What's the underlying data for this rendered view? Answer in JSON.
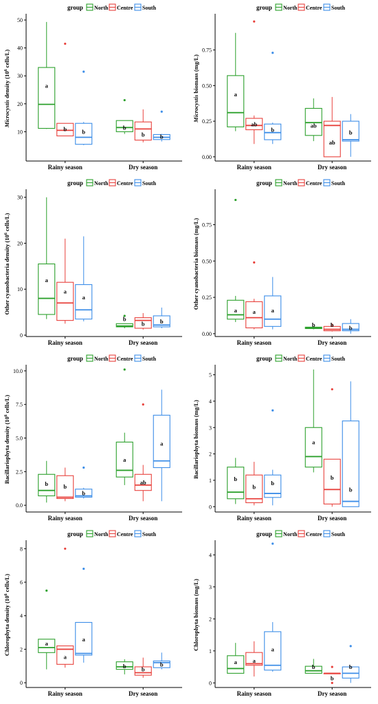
{
  "legend": {
    "title": "group",
    "groups": [
      {
        "name": "North",
        "color": "#2ca02c"
      },
      {
        "name": "Centre",
        "color": "#e8413c"
      },
      {
        "name": "South",
        "color": "#3d8ee8"
      }
    ]
  },
  "chart_data": [
    {
      "type": "boxplot",
      "ylabel_parts": [
        {
          "t": "Microcystis",
          "i": true
        },
        {
          "t": " density (10",
          "i": false
        },
        {
          "t": "6",
          "sup": true
        },
        {
          "t": " cells/L)",
          "i": false
        }
      ],
      "ylim": [
        0,
        51
      ],
      "ticks": [
        10,
        20,
        30,
        40,
        50
      ],
      "tick_labels": [
        "10",
        "20",
        "30",
        "40",
        "50"
      ],
      "categories": [
        "Rainy season",
        "Dry season"
      ],
      "boxes": [
        [
          {
            "min": 11,
            "q1": 11.2,
            "med": 19.8,
            "q3": 33,
            "max": 49.3,
            "out": [],
            "sig": "a",
            "sigy": 26.5
          },
          {
            "min": 8.5,
            "q1": 8.5,
            "med": 10.5,
            "q3": 13,
            "max": 13,
            "out": [
              41.5
            ],
            "sig": "b",
            "sigy": 11
          },
          {
            "min": 5.2,
            "q1": 5.5,
            "med": 8,
            "q3": 13,
            "max": 13.5,
            "out": [
              31.5
            ],
            "sig": "b",
            "sigy": 10
          }
        ],
        [
          {
            "min": 9.2,
            "q1": 10,
            "med": 11.5,
            "q3": 14,
            "max": 14,
            "out": [
              21.3
            ],
            "sig": "b",
            "sigy": 11.5
          },
          {
            "min": 6.2,
            "q1": 7,
            "med": 11,
            "q3": 13.5,
            "max": 18,
            "out": [],
            "sig": "b",
            "sigy": 9
          },
          {
            "min": 6.5,
            "q1": 7.2,
            "med": 8,
            "q3": 9,
            "max": 9.2,
            "out": [
              17.2
            ],
            "sig": "b",
            "sigy": 8.2
          }
        ]
      ]
    },
    {
      "type": "boxplot",
      "ylabel_parts": [
        {
          "t": "Microcystis",
          "i": true
        },
        {
          "t": " biomass (mg/L)",
          "i": false
        }
      ],
      "ylim": [
        -0.02,
        0.98
      ],
      "ticks": [
        0,
        0.25,
        0.5,
        0.75
      ],
      "tick_labels": [
        "0.00",
        "0.25",
        "0.50",
        "0.75"
      ],
      "categories": [
        "Rainy season",
        "Dry season"
      ],
      "boxes": [
        [
          {
            "min": 0.18,
            "q1": 0.21,
            "med": 0.31,
            "q3": 0.57,
            "max": 0.87,
            "out": [],
            "sig": "a",
            "sigy": 0.44
          },
          {
            "min": 0.09,
            "q1": 0.19,
            "med": 0.22,
            "q3": 0.27,
            "max": 0.29,
            "out": [
              0.95
            ],
            "sig": "ab",
            "sigy": 0.23
          },
          {
            "min": 0.09,
            "q1": 0.12,
            "med": 0.17,
            "q3": 0.23,
            "max": 0.24,
            "out": [
              0.73
            ],
            "sig": "b",
            "sigy": 0.19
          }
        ],
        [
          {
            "min": 0.11,
            "q1": 0.15,
            "med": 0.24,
            "q3": 0.34,
            "max": 0.41,
            "out": [],
            "sig": "ab",
            "sigy": 0.22
          },
          {
            "min": 0,
            "q1": 0,
            "med": 0.22,
            "q3": 0.25,
            "max": 0.42,
            "out": [],
            "sig": "ab",
            "sigy": 0.1
          },
          {
            "min": 0,
            "q1": 0.11,
            "med": 0.12,
            "q3": 0.25,
            "max": 0.3,
            "out": [],
            "sig": "b",
            "sigy": 0.17
          }
        ]
      ]
    },
    {
      "type": "boxplot",
      "ylabel_parts": [
        {
          "t": "Other cyanobacteria density (10",
          "i": false
        },
        {
          "t": "6",
          "sup": true
        },
        {
          "t": " cells/L)",
          "i": false
        }
      ],
      "ylim": [
        0,
        31
      ],
      "ticks": [
        0,
        10,
        20,
        30
      ],
      "tick_labels": [
        "0",
        "10",
        "20",
        "30"
      ],
      "categories": [
        "Rainy season",
        "Dry season"
      ],
      "boxes": [
        [
          {
            "min": 3.5,
            "q1": 4.5,
            "med": 8,
            "q3": 15.5,
            "max": 30,
            "out": [],
            "sig": "a",
            "sigy": 12
          },
          {
            "min": 2.5,
            "q1": 3.2,
            "med": 7,
            "q3": 11.5,
            "max": 21,
            "out": [],
            "sig": "a",
            "sigy": 9.5
          },
          {
            "min": 3,
            "q1": 3.5,
            "med": 5.5,
            "q3": 11,
            "max": 21.5,
            "out": [],
            "sig": "a",
            "sigy": 8.2
          }
        ],
        [
          {
            "min": 1.5,
            "q1": 1.8,
            "med": 2,
            "q3": 2.5,
            "max": 2.5,
            "out": [
              4.2
            ],
            "sig": "b",
            "sigy": 3.5
          },
          {
            "min": 1.2,
            "q1": 1.5,
            "med": 3.2,
            "q3": 3.8,
            "max": 4.8,
            "out": [],
            "sig": "b",
            "sigy": 2.5
          },
          {
            "min": 1.5,
            "q1": 1.8,
            "med": 2.2,
            "q3": 4.2,
            "max": 6,
            "out": [],
            "sig": "b",
            "sigy": 3
          }
        ]
      ]
    },
    {
      "type": "boxplot",
      "ylabel_parts": [
        {
          "t": "Other cyanobacteria biomass (mg/L)",
          "i": false
        }
      ],
      "ylim": [
        -0.01,
        0.97
      ],
      "ticks": [
        0,
        0.25,
        0.5,
        0.75
      ],
      "tick_labels": [
        "0.00",
        "0.25",
        "0.50",
        "0.75"
      ],
      "categories": [
        "Rainy season",
        "Dry season"
      ],
      "boxes": [
        [
          {
            "min": 0.08,
            "q1": 0.1,
            "med": 0.13,
            "q3": 0.23,
            "max": 0.26,
            "out": [
              0.92
            ],
            "sig": "a",
            "sigy": 0.16
          },
          {
            "min": 0.03,
            "q1": 0.04,
            "med": 0.11,
            "q3": 0.22,
            "max": 0.24,
            "out": [
              0.49
            ],
            "sig": "a",
            "sigy": 0.15
          },
          {
            "min": 0.03,
            "q1": 0.05,
            "med": 0.1,
            "q3": 0.26,
            "max": 0.39,
            "out": [],
            "sig": "a",
            "sigy": 0.16
          }
        ],
        [
          {
            "min": 0.03,
            "q1": 0.035,
            "med": 0.04,
            "q3": 0.045,
            "max": 0.05,
            "out": [],
            "sig": "b",
            "sigy": 0.06
          },
          {
            "min": 0.015,
            "q1": 0.02,
            "med": 0.03,
            "q3": 0.05,
            "max": 0.07,
            "out": [],
            "sig": "b",
            "sigy": 0.06
          },
          {
            "min": 0,
            "q1": 0.02,
            "med": 0.03,
            "q3": 0.07,
            "max": 0.1,
            "out": [],
            "sig": "b",
            "sigy": 0.04
          }
        ]
      ]
    },
    {
      "type": "boxplot",
      "ylabel_parts": [
        {
          "t": "Bacillariophyta density (10",
          "i": false
        },
        {
          "t": "6",
          "sup": true
        },
        {
          "t": " cells/L)",
          "i": false
        }
      ],
      "ylim": [
        -0.4,
        10.2
      ],
      "ticks": [
        0,
        2.5,
        5,
        7.5,
        10
      ],
      "tick_labels": [
        "0.0",
        "2.5",
        "5.0",
        "7.5",
        "10.0"
      ],
      "categories": [
        "Rainy season",
        "Dry season"
      ],
      "boxes": [
        [
          {
            "min": 0.2,
            "q1": 0.7,
            "med": 1.1,
            "q3": 2.3,
            "max": 3.3,
            "out": [],
            "sig": "b",
            "sigy": 1.6
          },
          {
            "min": 0.3,
            "q1": 0.5,
            "med": 0.6,
            "q3": 2.2,
            "max": 2.8,
            "out": [],
            "sig": "b",
            "sigy": 1.4
          },
          {
            "min": 0.5,
            "q1": 0.6,
            "med": 0.7,
            "q3": 1.2,
            "max": 1.3,
            "out": [
              2.8
            ],
            "sig": "b",
            "sigy": 0.9
          }
        ],
        [
          {
            "min": 1.5,
            "q1": 2.1,
            "med": 2.6,
            "q3": 4.7,
            "max": 5.4,
            "out": [
              10.1
            ],
            "sig": "a",
            "sigy": 3.4
          },
          {
            "min": 0.3,
            "q1": 1.1,
            "med": 1.5,
            "q3": 2.3,
            "max": 3,
            "out": [
              7.5
            ],
            "sig": "ab",
            "sigy": 1.7
          },
          {
            "min": 0.3,
            "q1": 2.8,
            "med": 3.3,
            "q3": 6.7,
            "max": 8.6,
            "out": [],
            "sig": "a",
            "sigy": 4.6
          }
        ]
      ]
    },
    {
      "type": "boxplot",
      "ylabel_parts": [
        {
          "t": "Bacillariophyta biomass (mg/L)",
          "i": false
        }
      ],
      "ylim": [
        -0.15,
        5.25
      ],
      "ticks": [
        0,
        1,
        2,
        3,
        4,
        5
      ],
      "tick_labels": [
        "0",
        "1",
        "2",
        "3",
        "4",
        "5"
      ],
      "categories": [
        "Rainy season",
        "Dry season"
      ],
      "boxes": [
        [
          {
            "min": 0.1,
            "q1": 0.3,
            "med": 0.55,
            "q3": 1.5,
            "max": 1.85,
            "out": [],
            "sig": "b",
            "sigy": 1.05
          },
          {
            "min": 0.05,
            "q1": 0.15,
            "med": 0.3,
            "q3": 1.2,
            "max": 1.7,
            "out": [],
            "sig": "b",
            "sigy": 0.75
          },
          {
            "min": 0.05,
            "q1": 0.35,
            "med": 0.5,
            "q3": 1.2,
            "max": 1.4,
            "out": [
              3.65
            ],
            "sig": "b",
            "sigy": 0.9
          }
        ],
        [
          {
            "min": 1.3,
            "q1": 1.5,
            "med": 1.9,
            "q3": 3,
            "max": 5.2,
            "out": [],
            "sig": "a",
            "sigy": 2.45
          },
          {
            "min": 0,
            "q1": 0.1,
            "med": 0.65,
            "q3": 1.8,
            "max": 1.8,
            "out": [
              4.45
            ],
            "sig": "b",
            "sigy": 1.1
          },
          {
            "min": 0,
            "q1": 0,
            "med": 0.2,
            "q3": 3.25,
            "max": 4.75,
            "out": [],
            "sig": "b",
            "sigy": 0.65
          }
        ]
      ]
    },
    {
      "type": "boxplot",
      "ylabel_parts": [
        {
          "t": "Chlorophyta density (10",
          "i": false
        },
        {
          "t": "6",
          "sup": true
        },
        {
          "t": " cells/L)",
          "i": false
        }
      ],
      "ylim": [
        -0.2,
        8.3
      ],
      "ticks": [
        0,
        2,
        4,
        6,
        8
      ],
      "tick_labels": [
        "0",
        "2",
        "4",
        "6",
        "8"
      ],
      "categories": [
        "Rainy season",
        "Dry season"
      ],
      "boxes": [
        [
          {
            "min": 0.8,
            "q1": 1.8,
            "med": 2.1,
            "q3": 2.6,
            "max": 2.6,
            "out": [
              5.5
            ],
            "sig": "a",
            "sigy": 2.35
          },
          {
            "min": 0.9,
            "q1": 1.1,
            "med": 2,
            "q3": 2.2,
            "max": 2.2,
            "out": [
              8
            ],
            "sig": "a",
            "sigy": 1.55
          },
          {
            "min": 1.2,
            "q1": 1.65,
            "med": 1.75,
            "q3": 3.6,
            "max": 3.6,
            "out": [
              6.8
            ],
            "sig": "a",
            "sigy": 2.6
          }
        ],
        [
          {
            "min": 0.5,
            "q1": 0.8,
            "med": 0.95,
            "q3": 1.25,
            "max": 1.4,
            "out": [],
            "sig": "b",
            "sigy": 1
          },
          {
            "min": 0.3,
            "q1": 0.45,
            "med": 0.6,
            "q3": 0.95,
            "max": 1.5,
            "out": [],
            "sig": "b",
            "sigy": 0.8
          },
          {
            "min": 0.8,
            "q1": 0.9,
            "med": 1.2,
            "q3": 1.3,
            "max": 1.8,
            "out": [],
            "sig": "b",
            "sigy": 1.1
          }
        ]
      ]
    },
    {
      "type": "boxplot",
      "ylabel_parts": [
        {
          "t": "Chlorophyta biomass (mg/L)",
          "i": false
        }
      ],
      "ylim": [
        -0.1,
        4.35
      ],
      "ticks": [
        0,
        1,
        2,
        3,
        4
      ],
      "tick_labels": [
        "0",
        "1",
        "2",
        "3",
        "4"
      ],
      "categories": [
        "Rainy season",
        "Dry season"
      ],
      "boxes": [
        [
          {
            "min": 0.3,
            "q1": 0.3,
            "med": 0.45,
            "q3": 0.85,
            "max": 1.25,
            "out": [],
            "sig": "a",
            "sigy": 0.65
          },
          {
            "min": 0.2,
            "q1": 0.55,
            "med": 0.6,
            "q3": 0.95,
            "max": 1.3,
            "out": [],
            "sig": "a",
            "sigy": 0.7
          },
          {
            "min": 0.35,
            "q1": 0.4,
            "med": 0.55,
            "q3": 1.6,
            "max": 1.9,
            "out": [
              4.35
            ],
            "sig": "a",
            "sigy": 1.05
          }
        ],
        [
          {
            "min": 0.3,
            "q1": 0.3,
            "med": 0.38,
            "q3": 0.52,
            "max": 0.75,
            "out": [],
            "sig": "b",
            "sigy": 0.5
          },
          {
            "min": 0.3,
            "q1": 0.3,
            "med": 0.3,
            "q3": 0.3,
            "max": 0.3,
            "out": [
              0,
              0.5
            ],
            "sig": "b",
            "sigy": 0.15
          },
          {
            "min": 0,
            "q1": 0.15,
            "med": 0.3,
            "q3": 0.5,
            "max": 0.5,
            "out": [
              1.15
            ],
            "sig": "b",
            "sigy": 0.5
          }
        ]
      ]
    }
  ]
}
